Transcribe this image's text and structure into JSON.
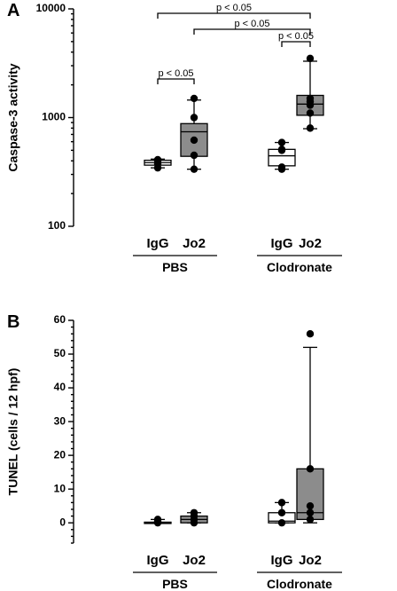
{
  "colors": {
    "igg_box": "#ffffff",
    "jo2_box": "#8c8c8c",
    "ink": "#000000"
  },
  "chart_data": [
    {
      "panel": "A",
      "type": "box",
      "ylabel": "Caspase-3 activity",
      "yscale": "log",
      "ylim": [
        100,
        10000
      ],
      "yticks": [
        100,
        1000,
        10000
      ],
      "ytick_labels": [
        "100",
        "1000",
        "10000"
      ],
      "categories": [
        "IgG",
        "Jo2",
        "IgG",
        "Jo2"
      ],
      "groups": [
        {
          "label": "PBS",
          "members": [
            0,
            1
          ]
        },
        {
          "label": "Clodronate",
          "members": [
            2,
            3
          ]
        }
      ],
      "boxes": [
        {
          "category": "IgG",
          "group": "PBS",
          "min": 345,
          "q1": 365,
          "median": 385,
          "q3": 405,
          "max": 415,
          "points": [
            345,
            375,
            400,
            410
          ]
        },
        {
          "category": "Jo2",
          "group": "PBS",
          "min": 335,
          "q1": 440,
          "median": 740,
          "q3": 880,
          "max": 1450,
          "points": [
            335,
            450,
            620,
            1000,
            1500
          ]
        },
        {
          "category": "IgG",
          "group": "Clodronate",
          "min": 335,
          "q1": 360,
          "median": 445,
          "q3": 510,
          "max": 590,
          "points": [
            335,
            350,
            500,
            510,
            590
          ]
        },
        {
          "category": "Jo2",
          "group": "Clodronate",
          "min": 790,
          "q1": 1050,
          "median": 1330,
          "q3": 1600,
          "max": 3300,
          "points": [
            800,
            1100,
            1300,
            1400,
            1500,
            3500
          ]
        }
      ],
      "annotations": [
        {
          "text": "p < 0.05",
          "from": 0,
          "to": 1
        },
        {
          "text": "p < 0.05",
          "from": 2,
          "to": 3
        },
        {
          "text": "p < 0.05",
          "from": 1,
          "to": 3
        },
        {
          "text": "p < 0.05",
          "from": 0,
          "to": 3
        }
      ]
    },
    {
      "panel": "B",
      "type": "box",
      "ylabel": "TUNEL (cells / 12 hpf)",
      "yscale": "linear",
      "ylim": [
        -6,
        60
      ],
      "yticks": [
        0,
        10,
        20,
        30,
        40,
        50,
        60
      ],
      "ytick_labels": [
        "0",
        "10",
        "20",
        "30",
        "40",
        "50",
        "60"
      ],
      "categories": [
        "IgG",
        "Jo2",
        "IgG",
        "Jo2"
      ],
      "groups": [
        {
          "label": "PBS",
          "members": [
            0,
            1
          ]
        },
        {
          "label": "Clodronate",
          "members": [
            2,
            3
          ]
        }
      ],
      "boxes": [
        {
          "category": "IgG",
          "group": "PBS",
          "min": 0,
          "q1": 0,
          "median": 0,
          "q3": 0.2,
          "max": 1,
          "points": [
            0,
            0.5,
            1
          ]
        },
        {
          "category": "Jo2",
          "group": "PBS",
          "min": 0,
          "q1": 0,
          "median": 1,
          "q3": 2,
          "max": 3,
          "points": [
            0,
            1,
            2,
            3
          ]
        },
        {
          "category": "IgG",
          "group": "Clodronate",
          "min": 0,
          "q1": 0,
          "median": 0.5,
          "q3": 3,
          "max": 6,
          "points": [
            0,
            3,
            6
          ]
        },
        {
          "category": "Jo2",
          "group": "Clodronate",
          "min": 0,
          "q1": 1,
          "median": 3,
          "q3": 16,
          "max": 52,
          "points": [
            1,
            3,
            5,
            16,
            56
          ]
        }
      ],
      "annotations": []
    }
  ]
}
